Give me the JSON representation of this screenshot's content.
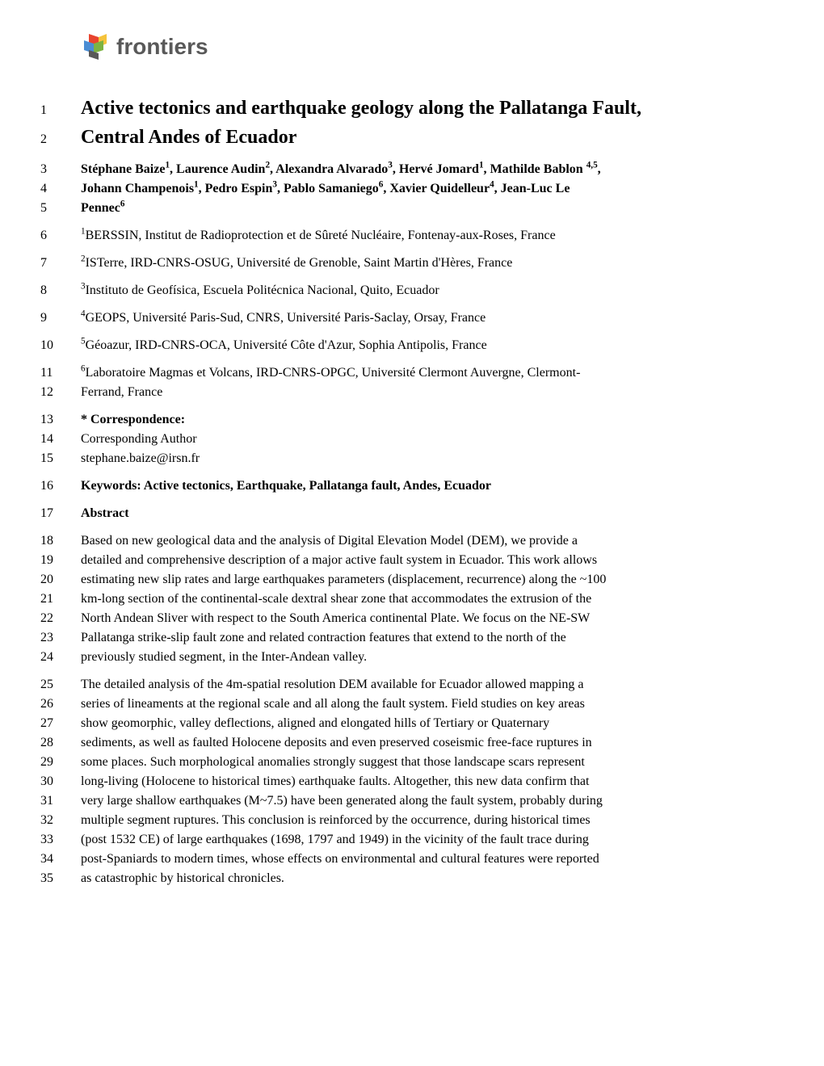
{
  "logo": {
    "text": "frontiers"
  },
  "colors": {
    "logo_text": "#595959",
    "body_text": "#000000",
    "background": "#ffffff",
    "cube_red": "#e8442f",
    "cube_yellow": "#f5c33b",
    "cube_blue": "#4a8dd4",
    "cube_green": "#7cb342"
  },
  "title": {
    "lines": [
      {
        "num": "1",
        "text": "Active tectonics and earthquake geology along the Pallatanga Fault,"
      },
      {
        "num": "2",
        "text": "Central Andes of Ecuador"
      }
    ]
  },
  "authors": {
    "lines": [
      {
        "num": "3",
        "html": "Stéphane Baize<sup>1</sup>, Laurence Audin<sup>2</sup>, Alexandra Alvarado<sup>3</sup>, Hervé Jomard<sup>1</sup>, Mathilde Bablon <sup>4,5</sup>,"
      },
      {
        "num": "4",
        "html": "Johann Champenois<sup>1</sup>, Pedro Espin<sup>3</sup>, Pablo Samaniego<sup>6</sup>, Xavier Quidelleur<sup>4</sup>, Jean-Luc Le"
      },
      {
        "num": "5",
        "html": "Pennec<sup>6</sup>"
      }
    ]
  },
  "affiliations": [
    {
      "num": "6",
      "html": "<sup>1</sup>BERSSIN, Institut de Radioprotection et de Sûreté Nucléaire, Fontenay-aux-Roses, France"
    },
    {
      "num": "7",
      "html": "<sup>2</sup>ISTerre, IRD-CNRS-OSUG, Université de Grenoble, Saint Martin d'Hères, France"
    },
    {
      "num": "8",
      "html": "<sup>3</sup>Instituto de Geofísica, Escuela Politécnica Nacional, Quito, Ecuador"
    },
    {
      "num": "9",
      "html": "<sup>4</sup>GEOPS, Université Paris-Sud, CNRS, Université Paris-Saclay, Orsay, France"
    },
    {
      "num": "10",
      "html": "<sup>5</sup>Géoazur, IRD-CNRS-OCA, Université Côte d'Azur, Sophia Antipolis, France"
    },
    {
      "num": "11",
      "html": "<sup>6</sup>Laboratoire Magmas et Volcans, IRD-CNRS-OPGC, Université Clermont Auvergne, Clermont-"
    },
    {
      "num": "12",
      "html": "Ferrand, France"
    }
  ],
  "correspondence": [
    {
      "num": "13",
      "html": "<b>* Correspondence:</b>"
    },
    {
      "num": "14",
      "text": "Corresponding Author"
    },
    {
      "num": "15",
      "text": "stephane.baize@irsn.fr"
    }
  ],
  "keywords": {
    "num": "16",
    "html": "<b>Keywords: Active tectonics, Earthquake, Pallatanga fault, Andes, Ecuador</b>"
  },
  "abstract_heading": {
    "num": "17",
    "html": "<b>Abstract</b>"
  },
  "abstract_p1": [
    {
      "num": "18",
      "text": "Based on new geological data and the analysis of Digital Elevation Model (DEM), we provide a"
    },
    {
      "num": "19",
      "text": "detailed and comprehensive description of a major active fault system in Ecuador. This work allows"
    },
    {
      "num": "20",
      "text": "estimating new slip rates and large earthquakes parameters (displacement, recurrence) along the ~100"
    },
    {
      "num": "21",
      "text": "km-long section of the continental-scale dextral shear zone that accommodates the extrusion of the"
    },
    {
      "num": "22",
      "text": "North Andean Sliver with respect to the South America continental Plate. We focus on the NE-SW"
    },
    {
      "num": "23",
      "text": "Pallatanga strike-slip fault zone and related contraction features that extend to the north of the"
    },
    {
      "num": "24",
      "text": "previously studied segment, in the Inter-Andean valley."
    }
  ],
  "abstract_p2": [
    {
      "num": "25",
      "text": "The detailed analysis of the 4m-spatial resolution DEM available for Ecuador allowed mapping a"
    },
    {
      "num": "26",
      "text": "series of lineaments at the regional scale and all along the fault system. Field studies on key areas"
    },
    {
      "num": "27",
      "text": "show geomorphic, valley deflections, aligned and elongated hills of Tertiary or Quaternary"
    },
    {
      "num": "28",
      "text": "sediments, as well as faulted Holocene deposits and even preserved coseismic free-face ruptures in"
    },
    {
      "num": "29",
      "text": "some places. Such morphological anomalies strongly suggest that those landscape scars represent"
    },
    {
      "num": "30",
      "text": "long-living (Holocene to historical times) earthquake faults. Altogether, this new data confirm that"
    },
    {
      "num": "31",
      "text": "very large shallow earthquakes (M~7.5) have been generated along the fault system, probably during"
    },
    {
      "num": "32",
      "text": "multiple segment ruptures. This conclusion is reinforced by the occurrence, during historical times"
    },
    {
      "num": "33",
      "text": "(post 1532 CE) of large earthquakes (1698, 1797 and 1949) in the vicinity of the fault trace during"
    },
    {
      "num": "34",
      "text": "post-Spaniards to modern times, whose effects on environmental and cultural features were reported"
    },
    {
      "num": "35",
      "text": "as catastrophic by historical chronicles."
    }
  ]
}
